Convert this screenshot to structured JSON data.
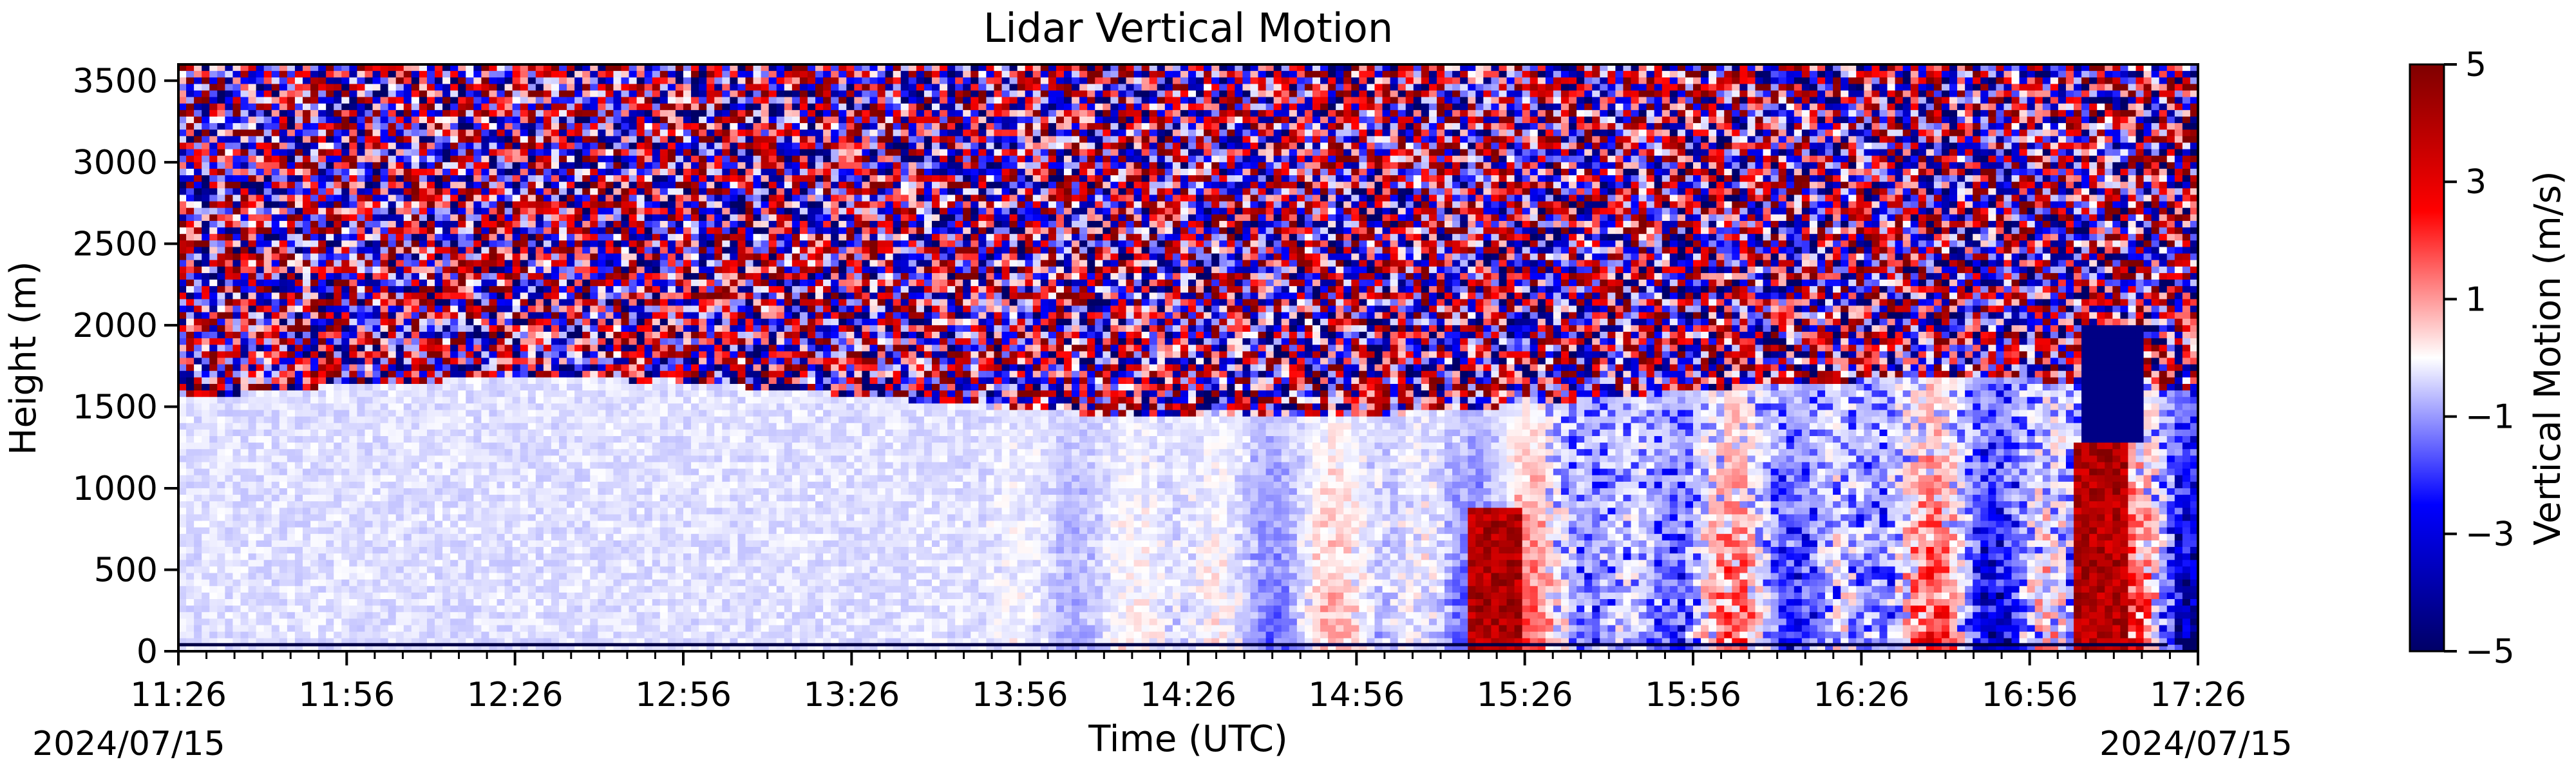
{
  "chart_data": {
    "type": "heatmap",
    "title": "Lidar Vertical Motion",
    "xlabel": "Time (UTC)",
    "ylabel": "Height (m)",
    "x_ticks": [
      "11:26",
      "11:56",
      "12:26",
      "12:56",
      "13:26",
      "13:56",
      "14:26",
      "14:56",
      "15:26",
      "15:56",
      "16:26",
      "16:56",
      "17:26"
    ],
    "x_start_date": "2024/07/15",
    "x_end_date": "2024/07/15",
    "y_ticks": [
      0,
      500,
      1000,
      1500,
      2000,
      2500,
      3000,
      3500
    ],
    "ylim": [
      0,
      3600
    ],
    "colorbar": {
      "label": "Vertical Motion (m/s)",
      "ticks": [
        5,
        3,
        1,
        -1,
        -3,
        -5
      ],
      "range": [
        -5,
        5
      ],
      "colors": [
        "#000066",
        "#0000ff",
        "#ffffff",
        "#ff0000",
        "#7f0000"
      ]
    },
    "regions": [
      {
        "name": "noisy upper layer",
        "height_from": 1600,
        "height_to": 3600
      },
      {
        "name": "boundary layer",
        "height_from": 0,
        "height_to": 1600
      },
      {
        "name": "strong updraft",
        "time": "15:10",
        "height_from": 0,
        "height_to": 900
      },
      {
        "name": "strong updraft",
        "time": "17:08",
        "height_from": 0,
        "height_to": 1300
      },
      {
        "name": "strong downdraft",
        "time": "17:08",
        "height_from": 1300,
        "height_to": 2000
      }
    ]
  }
}
